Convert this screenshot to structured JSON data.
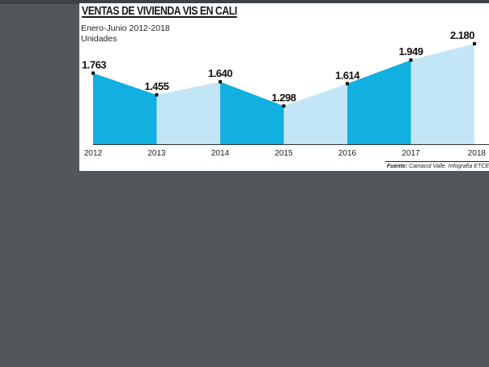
{
  "chart_data": {
    "type": "area",
    "title": "VENTAS DE VIVIENDA VIS EN CALI",
    "subtitle": "Enero-Junio 2012-2018",
    "ylabel": "Unidades",
    "categories": [
      "2012",
      "2013",
      "2014",
      "2015",
      "2016",
      "2017",
      "2018"
    ],
    "values": [
      1763,
      1455,
      1640,
      1298,
      1614,
      1949,
      2180
    ],
    "value_labels": [
      "1.763",
      "1.455",
      "1.640",
      "1.298",
      "1.614",
      "1.949",
      "2.180"
    ],
    "ylim": [
      0,
      2180
    ],
    "grid": false,
    "legend": "none",
    "colors": {
      "dark": "#12afe1",
      "light": "#c3e6f6"
    },
    "dark_segments": [
      0,
      2,
      4
    ]
  },
  "source": {
    "label": "Fuente:",
    "text": "Camacol Valle. Infografía ETCE"
  }
}
